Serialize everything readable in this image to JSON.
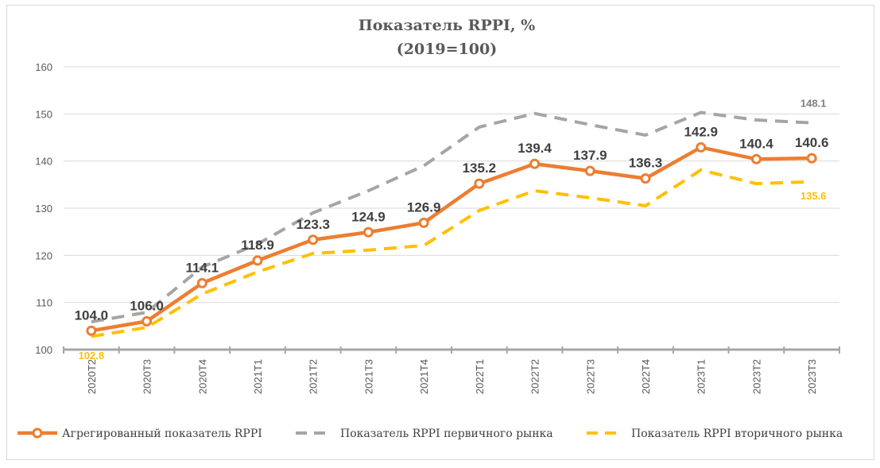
{
  "chart_data": {
    "type": "line",
    "title": "Показатель RPPI, %",
    "subtitle": "(2019=100)",
    "xlabel": "",
    "ylabel": "",
    "ylim": [
      100,
      160
    ],
    "yticks": [
      100,
      110,
      120,
      130,
      140,
      150,
      160
    ],
    "grid": true,
    "legend_position": "bottom",
    "categories": [
      "2020T2",
      "2020T3",
      "2020T4",
      "2021T1",
      "2021T2",
      "2021T3",
      "2021T4",
      "2022T1",
      "2022T2",
      "2022T3",
      "2022T4",
      "2023T1",
      "2023T2",
      "2023T3"
    ],
    "series": [
      {
        "name": "Агрегированный показатель RPPI",
        "color": "#ed7d31",
        "style": "solid-markers",
        "values": [
          104.0,
          106.0,
          114.1,
          118.9,
          123.3,
          124.9,
          126.9,
          135.2,
          139.4,
          137.9,
          136.3,
          142.9,
          140.4,
          140.6
        ],
        "labels": [
          "104.0",
          "106.0",
          "114.1",
          "118.9",
          "123.3",
          "124.9",
          "126.9",
          "135.2",
          "139.4",
          "137.9",
          "136.3",
          "142.9",
          "140.4",
          "140.6"
        ]
      },
      {
        "name": "Показатель RPPI первичного рынка",
        "color": "#a5a5a5",
        "style": "dashed",
        "values": [
          105.9,
          107.9,
          117.5,
          122.4,
          129.0,
          133.7,
          139.0,
          147.2,
          150.1,
          147.7,
          145.5,
          150.3,
          148.7,
          148.1
        ],
        "last_label": "148.1"
      },
      {
        "name": "Показатель RPPI вторичного рынка",
        "color": "#ffc000",
        "style": "dashed",
        "values": [
          102.8,
          104.7,
          111.8,
          116.5,
          120.4,
          121.1,
          122.1,
          129.5,
          133.7,
          132.2,
          130.5,
          138.1,
          135.2,
          135.6
        ],
        "first_label": "102.8",
        "last_label": "135.6"
      }
    ]
  }
}
